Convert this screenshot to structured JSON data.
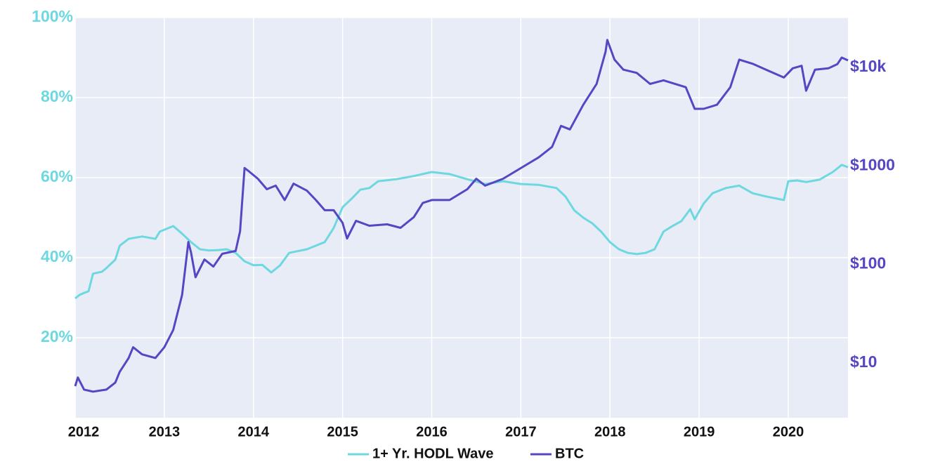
{
  "chart_data": {
    "type": "line",
    "xlim": [
      2012,
      2020.67
    ],
    "xticks": [
      2012,
      2013,
      2014,
      2015,
      2016,
      2017,
      2018,
      2019,
      2020
    ],
    "ylim": [
      0,
      100
    ],
    "yticks": [
      {
        "value": 20,
        "label": "20%"
      },
      {
        "value": 40,
        "label": "40%"
      },
      {
        "value": 60,
        "label": "60%"
      },
      {
        "value": 80,
        "label": "80%"
      },
      {
        "value": 100,
        "label": "100%"
      }
    ],
    "y2lim": [
      2.77,
      32100
    ],
    "y2ticks": [
      {
        "value": 10,
        "label": "$10"
      },
      {
        "value": 100,
        "label": "$100"
      },
      {
        "value": 1000,
        "label": "$1000"
      },
      {
        "value": 10000,
        "label": "$10k"
      }
    ],
    "y2_log_scale": true,
    "grid": true,
    "legend": "bottom",
    "series": [
      {
        "name": "1+ Yr. HODL Wave",
        "color": "#6dd8e0",
        "x": [
          2012.0,
          2012.05,
          2012.1,
          2012.15,
          2012.2,
          2012.3,
          2012.35,
          2012.45,
          2012.5,
          2012.6,
          2012.75,
          2012.9,
          2012.95,
          2013.1,
          2013.2,
          2013.3,
          2013.4,
          2013.5,
          2013.6,
          2013.7,
          2013.8,
          2013.9,
          2014.0,
          2014.1,
          2014.2,
          2014.3,
          2014.4,
          2014.6,
          2014.8,
          2014.9,
          2015.0,
          2015.1,
          2015.2,
          2015.3,
          2015.4,
          2015.6,
          2015.8,
          2016.0,
          2016.2,
          2016.4,
          2016.6,
          2016.8,
          2017.0,
          2017.2,
          2017.4,
          2017.5,
          2017.6,
          2017.7,
          2017.8,
          2017.9,
          2018.0,
          2018.1,
          2018.2,
          2018.3,
          2018.4,
          2018.5,
          2018.6,
          2018.7,
          2018.8,
          2018.9,
          2018.95,
          2019.05,
          2019.15,
          2019.3,
          2019.45,
          2019.6,
          2019.75,
          2019.95,
          2020.0,
          2020.1,
          2020.2,
          2020.35,
          2020.5,
          2020.6,
          2020.67
        ],
        "values": [
          29.8,
          30.7,
          31.2,
          31.6,
          36,
          36.5,
          37.4,
          39.5,
          43,
          44.7,
          45.3,
          44.7,
          46.5,
          47.9,
          46,
          43.9,
          42.1,
          41.8,
          41.9,
          42.1,
          41.2,
          39.1,
          38.1,
          38.2,
          36.3,
          38.1,
          41.2,
          42.1,
          43.9,
          47.4,
          52.6,
          54.7,
          57,
          57.4,
          59.1,
          59.6,
          60.4,
          61.4,
          60.9,
          59.6,
          58.4,
          59.1,
          58.4,
          58.2,
          57.4,
          55.3,
          51.8,
          50,
          48.6,
          46.5,
          43.9,
          42.1,
          41.2,
          40.9,
          41.2,
          42.1,
          46.5,
          47.9,
          49.1,
          52.1,
          49.6,
          53.5,
          56.1,
          57.4,
          58,
          56.1,
          55.3,
          54.4,
          59.1,
          59.3,
          58.9,
          59.5,
          61.4,
          63.2,
          62.6
        ]
      },
      {
        "name": "BTC",
        "color": "#5546c4",
        "axis": "y2",
        "x": [
          2012.0,
          2012.03,
          2012.1,
          2012.2,
          2012.35,
          2012.45,
          2012.5,
          2012.6,
          2012.65,
          2012.75,
          2012.9,
          2013.0,
          2013.1,
          2013.2,
          2013.27,
          2013.3,
          2013.35,
          2013.45,
          2013.55,
          2013.65,
          2013.8,
          2013.85,
          2013.9,
          2013.95,
          2014.05,
          2014.15,
          2014.25,
          2014.35,
          2014.45,
          2014.6,
          2014.7,
          2014.8,
          2014.9,
          2015.0,
          2015.05,
          2015.15,
          2015.3,
          2015.5,
          2015.65,
          2015.8,
          2015.9,
          2016.0,
          2016.2,
          2016.4,
          2016.5,
          2016.6,
          2016.8,
          2017.0,
          2017.2,
          2017.35,
          2017.45,
          2017.55,
          2017.7,
          2017.85,
          2017.95,
          2017.97,
          2018.05,
          2018.15,
          2018.3,
          2018.45,
          2018.6,
          2018.85,
          2018.95,
          2019.05,
          2019.2,
          2019.35,
          2019.45,
          2019.6,
          2019.75,
          2019.95,
          2020.05,
          2020.15,
          2020.2,
          2020.3,
          2020.45,
          2020.55,
          2020.6,
          2020.67
        ],
        "values": [
          5.8,
          7.1,
          5.35,
          5.1,
          5.35,
          6.3,
          8.1,
          11.2,
          14.4,
          12.2,
          11.2,
          14.4,
          21.6,
          49,
          169,
          132,
          74,
          112,
          95,
          128,
          137,
          217,
          952,
          880,
          741,
          580,
          630,
          450,
          660,
          560,
          450,
          355,
          355,
          264,
          183,
          277,
          247,
          255,
          235,
          302,
          420,
          450,
          450,
          580,
          741,
          630,
          741,
          950,
          1220,
          1560,
          2550,
          2350,
          4180,
          6800,
          14400,
          19000,
          12000,
          9500,
          8800,
          6800,
          7400,
          6300,
          3800,
          3800,
          4180,
          6300,
          12000,
          10900,
          9500,
          7900,
          9800,
          10400,
          5800,
          9500,
          9800,
          10800,
          12600,
          11800
        ]
      }
    ]
  }
}
